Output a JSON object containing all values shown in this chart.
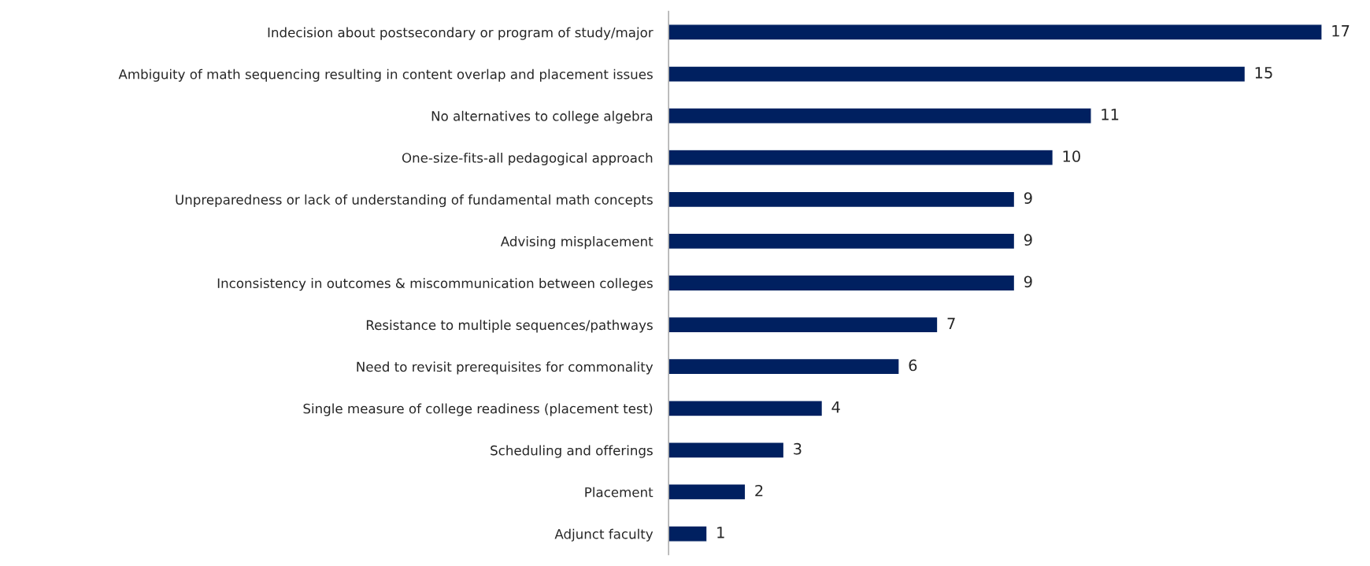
{
  "chart_data": {
    "type": "bar",
    "orientation": "horizontal",
    "categories": [
      "Indecision about postsecondary or program of study/major",
      "Ambiguity of math sequencing resulting in content overlap and placement issues",
      "No alternatives to college algebra",
      "One-size-fits-all pedagogical approach",
      "Unpreparedness or lack of understanding of fundamental math concepts",
      "Advising misplacement",
      "Inconsistency in outcomes & miscommunication between colleges",
      "Resistance to multiple sequences/pathways",
      "Need to revisit prerequisites for commonality",
      "Single measure of college readiness (placement test)",
      "Scheduling and offerings",
      "Placement",
      "Adjunct faculty"
    ],
    "values": [
      17,
      15,
      11,
      10,
      9,
      9,
      9,
      7,
      6,
      4,
      3,
      2,
      1
    ],
    "color": "#002060",
    "data_labels": true
  }
}
